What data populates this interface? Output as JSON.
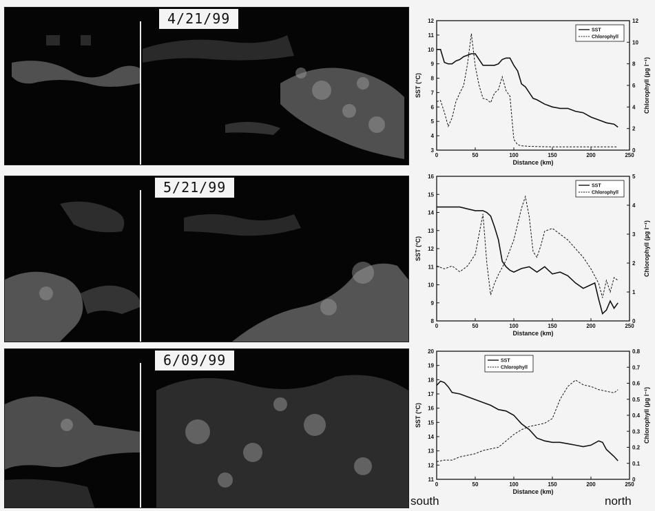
{
  "panels": [
    {
      "date": "4/21/99"
    },
    {
      "date": "5/21/99"
    },
    {
      "date": "6/09/99"
    }
  ],
  "direction": {
    "south": "south",
    "north": "north"
  },
  "chart_data": [
    {
      "type": "line",
      "xlabel": "Distance (km)",
      "ylabel": "SST (°C)",
      "y2label": "Chlorophyll (µg l⁻¹)",
      "xlim": [
        0,
        250
      ],
      "ylim": [
        3,
        12
      ],
      "y2lim": [
        0,
        12
      ],
      "xticks": [
        0,
        50,
        100,
        150,
        200,
        250
      ],
      "yticks": [
        3,
        4,
        5,
        6,
        7,
        8,
        9,
        10,
        11,
        12
      ],
      "y2ticks": [
        0,
        2,
        4,
        6,
        8,
        10,
        12
      ],
      "legend_position": "top-right",
      "series": [
        {
          "name": "SST",
          "axis": "left",
          "style": "solid",
          "x": [
            0,
            5,
            10,
            15,
            20,
            25,
            30,
            35,
            40,
            45,
            50,
            55,
            60,
            65,
            70,
            75,
            80,
            85,
            90,
            95,
            100,
            105,
            110,
            115,
            120,
            125,
            130,
            140,
            150,
            160,
            170,
            180,
            190,
            200,
            210,
            220,
            230,
            235
          ],
          "values": [
            10.0,
            10.0,
            9.1,
            9.0,
            9.0,
            9.2,
            9.3,
            9.5,
            9.6,
            9.7,
            9.7,
            9.3,
            8.9,
            8.9,
            8.9,
            8.9,
            9.0,
            9.3,
            9.4,
            9.4,
            8.9,
            8.5,
            7.6,
            7.4,
            7.0,
            6.6,
            6.5,
            6.2,
            6.0,
            5.9,
            5.9,
            5.7,
            5.6,
            5.3,
            5.1,
            4.9,
            4.8,
            4.6
          ]
        },
        {
          "name": "Chlorophyll",
          "axis": "right",
          "style": "dashed",
          "x": [
            0,
            5,
            10,
            15,
            20,
            25,
            30,
            35,
            40,
            45,
            50,
            55,
            60,
            65,
            70,
            75,
            80,
            85,
            90,
            95,
            100,
            105,
            110,
            120,
            150,
            200,
            235
          ],
          "values": [
            4.5,
            4.6,
            3.5,
            2.2,
            3.0,
            4.5,
            5.3,
            6.0,
            8.0,
            10.8,
            7.8,
            6.0,
            4.8,
            4.7,
            4.4,
            5.3,
            5.6,
            6.8,
            5.5,
            5.0,
            1.0,
            0.5,
            0.4,
            0.35,
            0.3,
            0.3,
            0.3
          ]
        }
      ]
    },
    {
      "type": "line",
      "xlabel": "Distance (km)",
      "ylabel": "SST (°C)",
      "y2label": "Chlorophyll (µg l⁻¹)",
      "xlim": [
        0,
        250
      ],
      "ylim": [
        8,
        16
      ],
      "y2lim": [
        0,
        5
      ],
      "xticks": [
        0,
        50,
        100,
        150,
        200,
        250
      ],
      "yticks": [
        8,
        9,
        10,
        11,
        12,
        13,
        14,
        15,
        16
      ],
      "y2ticks": [
        0,
        1,
        2,
        3,
        4,
        5
      ],
      "legend_position": "top-right",
      "series": [
        {
          "name": "SST",
          "axis": "left",
          "style": "solid",
          "x": [
            0,
            10,
            20,
            30,
            40,
            50,
            60,
            65,
            70,
            75,
            80,
            85,
            90,
            95,
            100,
            110,
            120,
            130,
            140,
            150,
            160,
            170,
            180,
            190,
            200,
            205,
            210,
            215,
            220,
            225,
            230,
            235
          ],
          "values": [
            14.3,
            14.3,
            14.3,
            14.3,
            14.2,
            14.1,
            14.1,
            14.0,
            13.8,
            13.2,
            12.5,
            11.3,
            11.0,
            10.8,
            10.7,
            10.9,
            11.0,
            10.7,
            11.0,
            10.6,
            10.7,
            10.5,
            10.1,
            9.8,
            10.0,
            10.1,
            9.2,
            8.4,
            8.6,
            9.1,
            8.7,
            9.0
          ]
        },
        {
          "name": "Chlorophyll",
          "axis": "right",
          "style": "dashed",
          "x": [
            0,
            10,
            20,
            30,
            40,
            50,
            55,
            60,
            65,
            70,
            75,
            80,
            90,
            100,
            110,
            115,
            120,
            125,
            130,
            135,
            140,
            150,
            160,
            170,
            180,
            190,
            200,
            210,
            215,
            220,
            225,
            230,
            235
          ],
          "values": [
            1.9,
            1.8,
            1.9,
            1.7,
            1.9,
            2.3,
            3.0,
            3.7,
            2.0,
            0.9,
            1.3,
            1.6,
            2.1,
            2.8,
            3.9,
            4.3,
            3.6,
            2.4,
            2.2,
            2.6,
            3.1,
            3.2,
            3.0,
            2.8,
            2.5,
            2.2,
            1.8,
            1.3,
            0.8,
            1.4,
            1.0,
            1.5,
            1.4
          ]
        }
      ]
    },
    {
      "type": "line",
      "xlabel": "Distance (km)",
      "ylabel": "SST (°C)",
      "y2label": "Chlorophyll (µg l⁻¹)",
      "xlim": [
        0,
        250
      ],
      "ylim": [
        11,
        20
      ],
      "y2lim": [
        0,
        0.8
      ],
      "xticks": [
        0,
        50,
        100,
        150,
        200,
        250
      ],
      "yticks": [
        11,
        12,
        13,
        14,
        15,
        16,
        17,
        18,
        19,
        20
      ],
      "y2ticks": [
        0.0,
        0.1,
        0.2,
        0.3,
        0.4,
        0.5,
        0.6,
        0.7,
        0.8
      ],
      "legend_position": "top-left",
      "series": [
        {
          "name": "SST",
          "axis": "left",
          "style": "solid",
          "x": [
            0,
            5,
            10,
            15,
            20,
            30,
            40,
            50,
            60,
            70,
            80,
            90,
            100,
            110,
            120,
            130,
            140,
            150,
            160,
            170,
            180,
            190,
            200,
            210,
            215,
            220,
            230,
            235
          ],
          "values": [
            17.6,
            17.9,
            17.8,
            17.5,
            17.1,
            17.0,
            16.8,
            16.6,
            16.4,
            16.2,
            15.9,
            15.8,
            15.5,
            14.9,
            14.5,
            13.9,
            13.7,
            13.6,
            13.6,
            13.5,
            13.4,
            13.3,
            13.4,
            13.7,
            13.6,
            13.1,
            12.6,
            12.3
          ]
        },
        {
          "name": "Chlorophyll",
          "axis": "right",
          "style": "dashed",
          "x": [
            0,
            10,
            20,
            30,
            40,
            50,
            60,
            70,
            80,
            90,
            100,
            110,
            120,
            130,
            140,
            150,
            160,
            170,
            175,
            180,
            190,
            200,
            210,
            220,
            230,
            235
          ],
          "values": [
            0.11,
            0.12,
            0.12,
            0.14,
            0.15,
            0.16,
            0.18,
            0.19,
            0.2,
            0.24,
            0.28,
            0.31,
            0.33,
            0.34,
            0.35,
            0.38,
            0.5,
            0.58,
            0.6,
            0.62,
            0.59,
            0.58,
            0.56,
            0.55,
            0.54,
            0.56
          ]
        }
      ]
    }
  ]
}
